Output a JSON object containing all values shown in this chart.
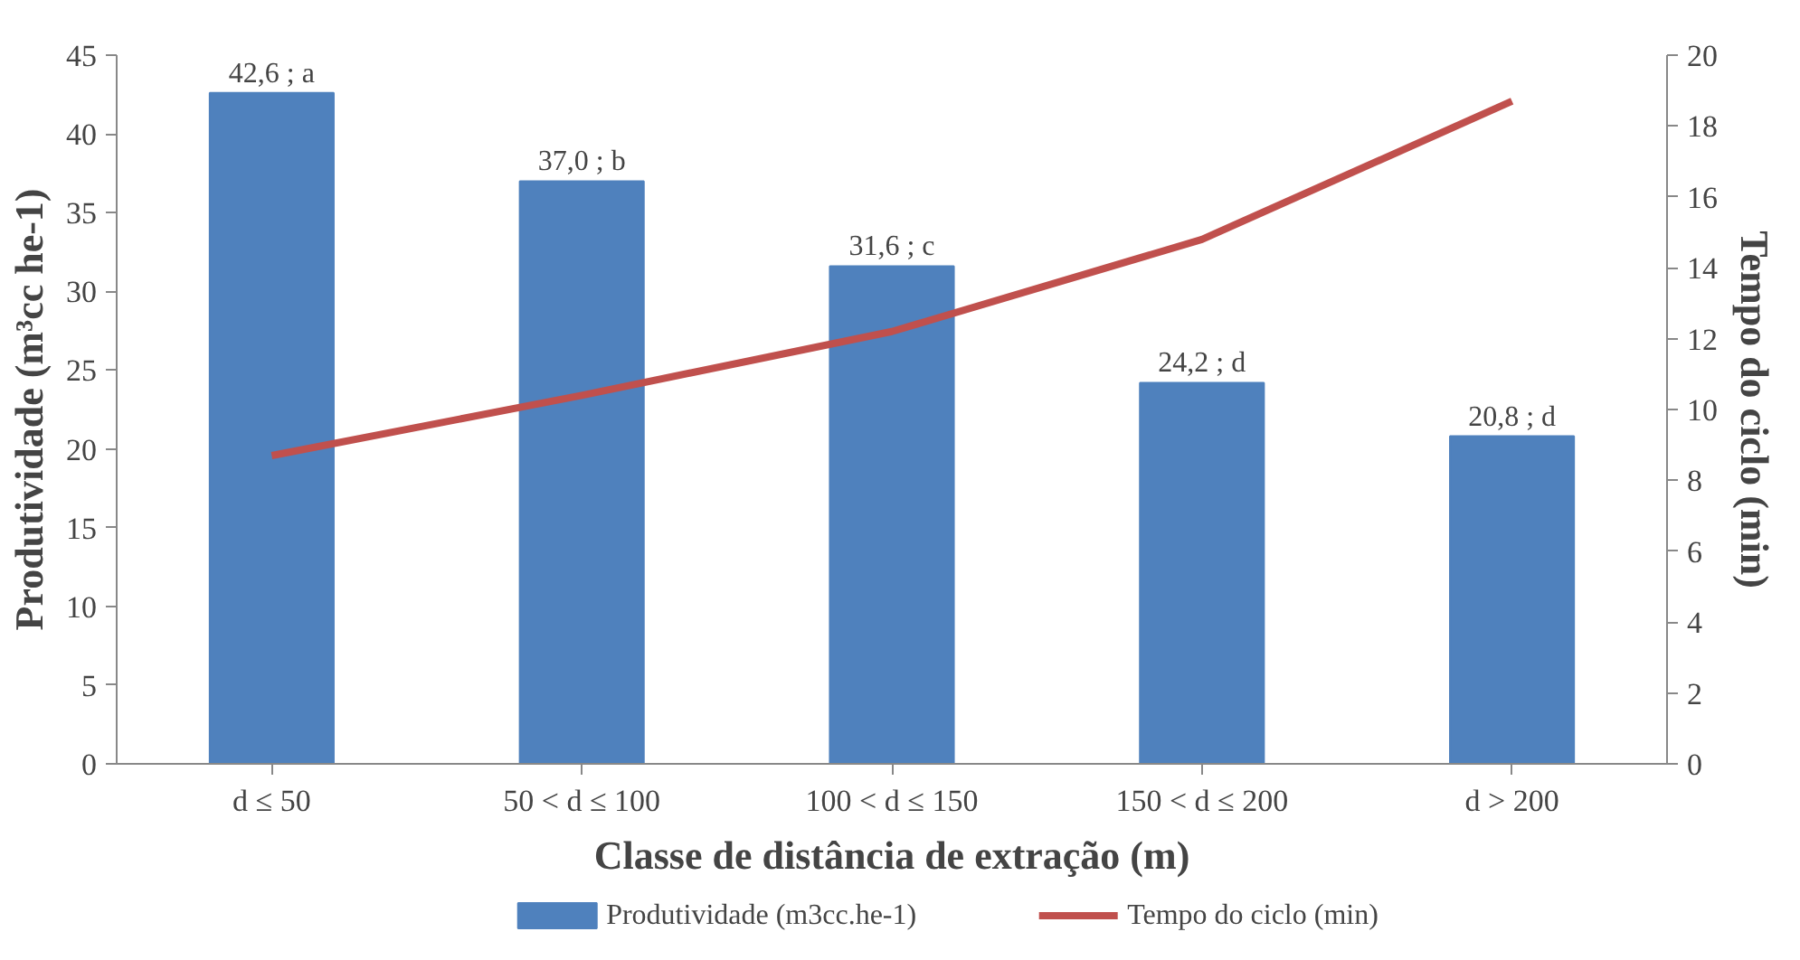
{
  "chart_data": {
    "type": "bar",
    "xlabel": "Classe de distância de extração (m)",
    "ylabel": "Produtividade (m³cc he-1)",
    "y2label": "Tempo do ciclo (min)",
    "categories": [
      "d ≤ 50",
      "50 < d ≤ 100",
      "100 < d ≤ 150",
      "150 < d ≤ 200",
      "d > 200"
    ],
    "series": [
      {
        "name": "Produtividade (m3cc.he-1)",
        "color": "#4f81bd",
        "values": [
          42.6,
          37.0,
          31.6,
          24.2,
          20.8
        ],
        "value_labels": [
          "42,6 ; a",
          "37,0 ; b",
          "31,6 ; c",
          "24,2 ; d",
          "20,8 ; d"
        ]
      },
      {
        "name": "Tempo do ciclo (min)",
        "type": "line",
        "axis": "y2",
        "color": "#c0504d",
        "values": [
          8.7,
          10.4,
          12.2,
          14.8,
          18.7
        ]
      }
    ],
    "ylim": [
      0,
      45
    ],
    "yticks": [
      0,
      5,
      10,
      15,
      20,
      25,
      30,
      35,
      40,
      45
    ],
    "y2lim": [
      0,
      20
    ],
    "y2ticks": [
      0,
      2,
      4,
      6,
      8,
      10,
      12,
      14,
      16,
      18,
      20
    ],
    "grid": false,
    "legend": "bottom",
    "marker": "none",
    "line_style": "solid"
  }
}
